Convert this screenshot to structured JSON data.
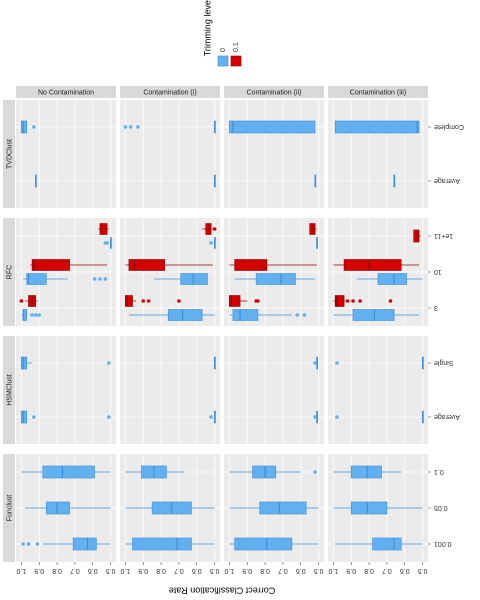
{
  "chart_data": {
    "type": "boxplot",
    "legend_title": "Trimming levels",
    "x_label": "Correct Classification Rate",
    "series": [
      {
        "name": "0",
        "color": "#62b0f0"
      },
      {
        "name": "0.1",
        "color": "#d40000"
      }
    ],
    "xlim": [
      1.03,
      0.47
    ],
    "xticks": [
      {
        "value": 1.0,
        "label": "1.0"
      },
      0.9,
      0.8,
      0.7,
      0.6,
      0.5
    ],
    "grid": true,
    "columns": [
      "No Contamination",
      "Contamination (i)",
      "Contamination (ii)",
      "Contamination (iii)"
    ],
    "rows": [
      {
        "name": "TVDClust",
        "categories": [
          "Complete",
          "Average"
        ],
        "panels": [
          [
            {
              "category": 0,
              "series": 0,
              "min": 0.97,
              "q1": 0.97,
              "median": 0.99,
              "q3": 1.0,
              "max": 1.0,
              "outliers": [
                0.93
              ]
            },
            {
              "category": 1,
              "series": 0,
              "min": 0.92,
              "q1": 0.92,
              "median": 0.92,
              "q3": 0.92,
              "max": 0.92,
              "outliers": []
            }
          ],
          [
            {
              "category": 0,
              "series": 0,
              "min": 0.5,
              "q1": 0.5,
              "median": 0.5,
              "q3": 0.5,
              "max": 0.5,
              "outliers": [
                1.0,
                0.97,
                0.93
              ]
            },
            {
              "category": 1,
              "series": 0,
              "min": 0.5,
              "q1": 0.5,
              "median": 0.5,
              "q3": 0.5,
              "max": 0.5,
              "outliers": []
            }
          ],
          [
            {
              "category": 0,
              "series": 0,
              "min": 0.52,
              "q1": 0.52,
              "median": 0.98,
              "q3": 1.0,
              "max": 1.0,
              "outliers": []
            },
            {
              "category": 1,
              "series": 0,
              "min": 0.52,
              "q1": 0.52,
              "median": 0.52,
              "q3": 0.52,
              "max": 0.52,
              "outliers": []
            }
          ],
          [
            {
              "category": 0,
              "series": 0,
              "min": 0.52,
              "q1": 0.52,
              "median": 0.53,
              "q3": 0.99,
              "max": 0.99,
              "outliers": []
            },
            {
              "category": 1,
              "series": 0,
              "min": 0.66,
              "q1": 0.66,
              "median": 0.66,
              "q3": 0.66,
              "max": 0.66,
              "outliers": []
            }
          ]
        ]
      },
      {
        "name": "RFC",
        "categories": [
          "1e+11",
          "10",
          "3"
        ],
        "panels": [
          [
            {
              "category": 0,
              "series": 1,
              "min": 0.51,
              "q1": 0.52,
              "median": 0.55,
              "q3": 0.56,
              "max": 0.57,
              "outliers": []
            },
            {
              "category": 0,
              "series": 0,
              "min": 0.5,
              "q1": 0.5,
              "median": 0.5,
              "q3": 0.5,
              "max": 0.5,
              "outliers": [
                0.53,
                0.52
              ]
            },
            {
              "category": 1,
              "series": 1,
              "min": 0.52,
              "q1": 0.73,
              "median": 0.93,
              "q3": 0.94,
              "max": 0.95,
              "outliers": []
            },
            {
              "category": 1,
              "series": 0,
              "min": 0.74,
              "q1": 0.86,
              "median": 0.96,
              "q3": 0.97,
              "max": 0.99,
              "outliers": [
                0.59,
                0.56,
                0.53
              ]
            },
            {
              "category": 2,
              "series": 1,
              "min": 0.91,
              "q1": 0.92,
              "median": 0.94,
              "q3": 0.96,
              "max": 0.98,
              "outliers": [
                1.0
              ]
            },
            {
              "category": 2,
              "series": 0,
              "min": 0.97,
              "q1": 0.97,
              "median": 0.99,
              "q3": 0.99,
              "max": 1.0,
              "outliers": [
                0.94,
                0.92,
                0.9
              ]
            }
          ],
          [
            {
              "category": 0,
              "series": 1,
              "min": 0.51,
              "q1": 0.52,
              "median": 0.53,
              "q3": 0.55,
              "max": 0.57,
              "outliers": [
                0.5
              ]
            },
            {
              "category": 0,
              "series": 0,
              "min": 0.5,
              "q1": 0.5,
              "median": 0.5,
              "q3": 0.5,
              "max": 0.5,
              "outliers": [
                0.52
              ]
            },
            {
              "category": 1,
              "series": 1,
              "min": 0.51,
              "q1": 0.78,
              "median": 0.95,
              "q3": 0.98,
              "max": 1.0,
              "outliers": []
            },
            {
              "category": 1,
              "series": 0,
              "min": 0.54,
              "q1": 0.54,
              "median": 0.62,
              "q3": 0.69,
              "max": 0.84,
              "outliers": []
            },
            {
              "category": 2,
              "series": 1,
              "min": 0.94,
              "q1": 0.96,
              "median": 0.99,
              "q3": 1.0,
              "max": 1.0,
              "outliers": [
                0.9,
                0.87,
                0.7
              ]
            },
            {
              "category": 2,
              "series": 0,
              "min": 0.5,
              "q1": 0.57,
              "median": 0.68,
              "q3": 0.76,
              "max": 0.98,
              "outliers": []
            }
          ],
          [
            {
              "category": 0,
              "series": 1,
              "min": 0.51,
              "q1": 0.52,
              "median": 0.53,
              "q3": 0.55,
              "max": 0.55,
              "outliers": []
            },
            {
              "category": 0,
              "series": 0,
              "min": 0.51,
              "q1": 0.51,
              "median": 0.51,
              "q3": 0.51,
              "max": 0.51,
              "outliers": []
            },
            {
              "category": 1,
              "series": 1,
              "min": 0.51,
              "q1": 0.79,
              "median": 0.82,
              "q3": 0.97,
              "max": 1.0,
              "outliers": []
            },
            {
              "category": 1,
              "series": 0,
              "min": 0.52,
              "q1": 0.63,
              "median": 0.71,
              "q3": 0.85,
              "max": 0.97,
              "outliers": []
            },
            {
              "category": 2,
              "series": 1,
              "min": 0.9,
              "q1": 0.94,
              "median": 0.99,
              "q3": 1.0,
              "max": 1.0,
              "outliers": [
                0.85,
                0.84
              ]
            },
            {
              "category": 2,
              "series": 0,
              "min": 0.65,
              "q1": 0.84,
              "median": 0.94,
              "q3": 0.98,
              "max": 1.0,
              "outliers": [
                0.62,
                0.58
              ]
            }
          ],
          [
            {
              "category": 0,
              "series": 1,
              "min": 0.51,
              "q1": 0.52,
              "median": 0.53,
              "q3": 0.55,
              "max": 0.55,
              "outliers": []
            },
            {
              "category": 1,
              "series": 1,
              "min": 0.52,
              "q1": 0.62,
              "median": 0.8,
              "q3": 0.94,
              "max": 1.0,
              "outliers": []
            },
            {
              "category": 1,
              "series": 0,
              "min": 0.5,
              "q1": 0.59,
              "median": 0.66,
              "q3": 0.75,
              "max": 0.87,
              "outliers": []
            },
            {
              "category": 2,
              "series": 1,
              "min": 0.93,
              "q1": 0.94,
              "median": 0.98,
              "q3": 0.99,
              "max": 1.0,
              "outliers": [
                0.92,
                0.89,
                0.85,
                0.68
              ]
            },
            {
              "category": 2,
              "series": 0,
              "min": 0.52,
              "q1": 0.66,
              "median": 0.77,
              "q3": 0.89,
              "max": 1.0,
              "outliers": []
            }
          ]
        ]
      },
      {
        "name": "HSMClust",
        "categories": [
          "Single",
          "Average"
        ],
        "panels": [
          [
            {
              "category": 0,
              "series": 0,
              "min": 0.94,
              "q1": 0.97,
              "median": 0.99,
              "q3": 1.0,
              "max": 1.0,
              "outliers": [
                0.51
              ]
            },
            {
              "category": 1,
              "series": 0,
              "min": 0.97,
              "q1": 0.97,
              "median": 0.99,
              "q3": 1.0,
              "max": 1.0,
              "outliers": [
                0.93,
                0.51
              ]
            }
          ],
          [
            {
              "category": 0,
              "series": 0,
              "min": 0.5,
              "q1": 0.5,
              "median": 0.5,
              "q3": 0.5,
              "max": 0.5,
              "outliers": []
            },
            {
              "category": 1,
              "series": 0,
              "min": 0.5,
              "q1": 0.5,
              "median": 0.5,
              "q3": 0.5,
              "max": 0.5,
              "outliers": [
                0.52
              ]
            }
          ],
          [
            {
              "category": 0,
              "series": 0,
              "min": 0.51,
              "q1": 0.51,
              "median": 0.51,
              "q3": 0.51,
              "max": 0.51,
              "outliers": [
                0.52
              ]
            },
            {
              "category": 1,
              "series": 0,
              "min": 0.51,
              "q1": 0.51,
              "median": 0.51,
              "q3": 0.51,
              "max": 0.51,
              "outliers": [
                0.52
              ]
            }
          ],
          [
            {
              "category": 0,
              "series": 0,
              "min": 0.5,
              "q1": 0.5,
              "median": 0.5,
              "q3": 0.5,
              "max": 0.5,
              "outliers": [
                0.98
              ]
            },
            {
              "category": 1,
              "series": 0,
              "min": 0.5,
              "q1": 0.5,
              "median": 0.5,
              "q3": 0.5,
              "max": 0.5,
              "outliers": [
                0.98
              ]
            }
          ]
        ]
      },
      {
        "name": "Funclust",
        "categories": [
          "0.1",
          "0.05",
          "0.001"
        ],
        "panels": [
          [
            {
              "category": 0,
              "series": 0,
              "min": 0.5,
              "q1": 0.59,
              "median": 0.77,
              "q3": 0.88,
              "max": 1.0,
              "outliers": []
            },
            {
              "category": 1,
              "series": 0,
              "min": 0.5,
              "q1": 0.73,
              "median": 0.8,
              "q3": 0.86,
              "max": 0.98,
              "outliers": []
            },
            {
              "category": 2,
              "series": 0,
              "min": 0.5,
              "q1": 0.58,
              "median": 0.63,
              "q3": 0.71,
              "max": 0.88,
              "outliers": [
                0.99,
                0.96,
                0.91
              ]
            }
          ],
          [
            {
              "category": 0,
              "series": 0,
              "min": 0.67,
              "q1": 0.77,
              "median": 0.84,
              "q3": 0.91,
              "max": 1.0,
              "outliers": []
            },
            {
              "category": 1,
              "series": 0,
              "min": 0.5,
              "q1": 0.63,
              "median": 0.74,
              "q3": 0.85,
              "max": 1.0,
              "outliers": []
            },
            {
              "category": 2,
              "series": 0,
              "min": 0.5,
              "q1": 0.63,
              "median": 0.71,
              "q3": 0.96,
              "max": 1.0,
              "outliers": []
            }
          ],
          [
            {
              "category": 0,
              "series": 0,
              "min": 0.6,
              "q1": 0.74,
              "median": 0.8,
              "q3": 0.87,
              "max": 1.0,
              "outliers": [
                0.52
              ]
            },
            {
              "category": 1,
              "series": 0,
              "min": 0.5,
              "q1": 0.57,
              "median": 0.72,
              "q3": 0.83,
              "max": 1.0,
              "outliers": []
            },
            {
              "category": 2,
              "series": 0,
              "min": 0.5,
              "q1": 0.65,
              "median": 0.79,
              "q3": 0.97,
              "max": 1.0,
              "outliers": []
            }
          ],
          [
            {
              "category": 0,
              "series": 0,
              "min": 0.62,
              "q1": 0.73,
              "median": 0.81,
              "q3": 0.9,
              "max": 1.0,
              "outliers": []
            },
            {
              "category": 1,
              "series": 0,
              "min": 0.5,
              "q1": 0.7,
              "median": 0.81,
              "q3": 0.9,
              "max": 1.0,
              "outliers": []
            },
            {
              "category": 2,
              "series": 0,
              "min": 0.5,
              "q1": 0.62,
              "median": 0.66,
              "q3": 0.78,
              "max": 0.99,
              "outliers": []
            }
          ]
        ]
      }
    ]
  }
}
